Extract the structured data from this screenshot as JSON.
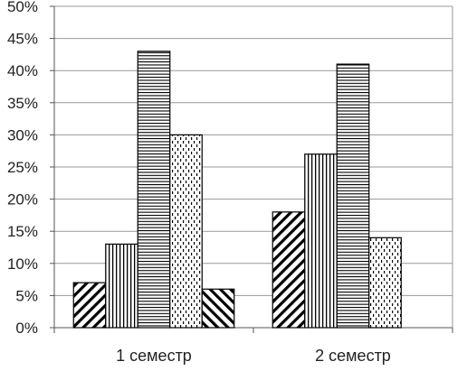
{
  "chart_data": {
    "type": "bar",
    "categories": [
      "1 семестр",
      "2 семестр"
    ],
    "series": [
      {
        "pattern": "diagonal-hatch",
        "values": [
          7,
          18
        ]
      },
      {
        "pattern": "vertical-lines",
        "values": [
          13,
          27
        ]
      },
      {
        "pattern": "horizontal-lines",
        "values": [
          43,
          41
        ]
      },
      {
        "pattern": "dotted-dashes",
        "values": [
          30,
          14
        ]
      },
      {
        "pattern": "back-diagonal-hatch",
        "values": [
          6,
          null
        ]
      }
    ],
    "ylim": [
      0,
      50
    ],
    "yticks": [
      "0%",
      "5%",
      "10%",
      "15%",
      "20%",
      "25%",
      "30%",
      "35%",
      "40%",
      "45%",
      "50%"
    ],
    "grid": true,
    "legend": "none",
    "colors": {
      "stroke": "#000000",
      "grid": "#999999",
      "fill": "#ffffff"
    }
  }
}
